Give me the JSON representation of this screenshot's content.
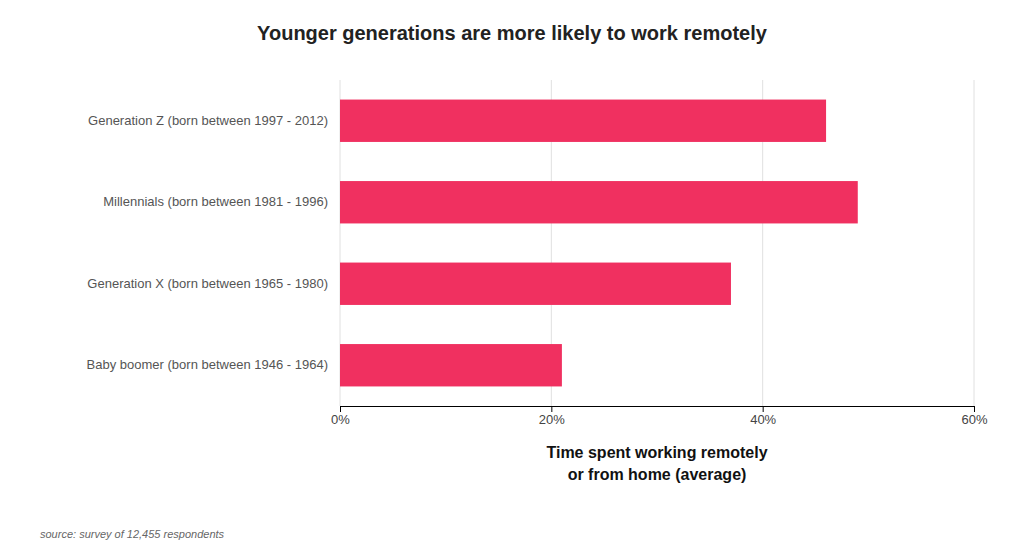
{
  "chart_data": {
    "type": "bar",
    "orientation": "horizontal",
    "title": "Younger generations are more likely to work remotely",
    "categories": [
      "Generation Z (born between 1997 - 2012)",
      "Millennials (born between 1981 - 1996)",
      "Generation X (born between 1965 - 1980)",
      "Baby boomer (born between 1946 - 1964)"
    ],
    "values": [
      46,
      49,
      37,
      21
    ],
    "color": "#f03060",
    "xlabel": "Time spent working remotely\nor from home (average)",
    "annotations": [
      "source: survey of 12,455 respondents"
    ],
    "xlim": [
      0,
      60
    ],
    "xticks": [
      {
        "value": 0,
        "label": "0%"
      },
      {
        "value": 20,
        "label": "20%"
      },
      {
        "value": 40,
        "label": "40%"
      },
      {
        "value": 60,
        "label": "60%"
      }
    ],
    "grid": true
  }
}
